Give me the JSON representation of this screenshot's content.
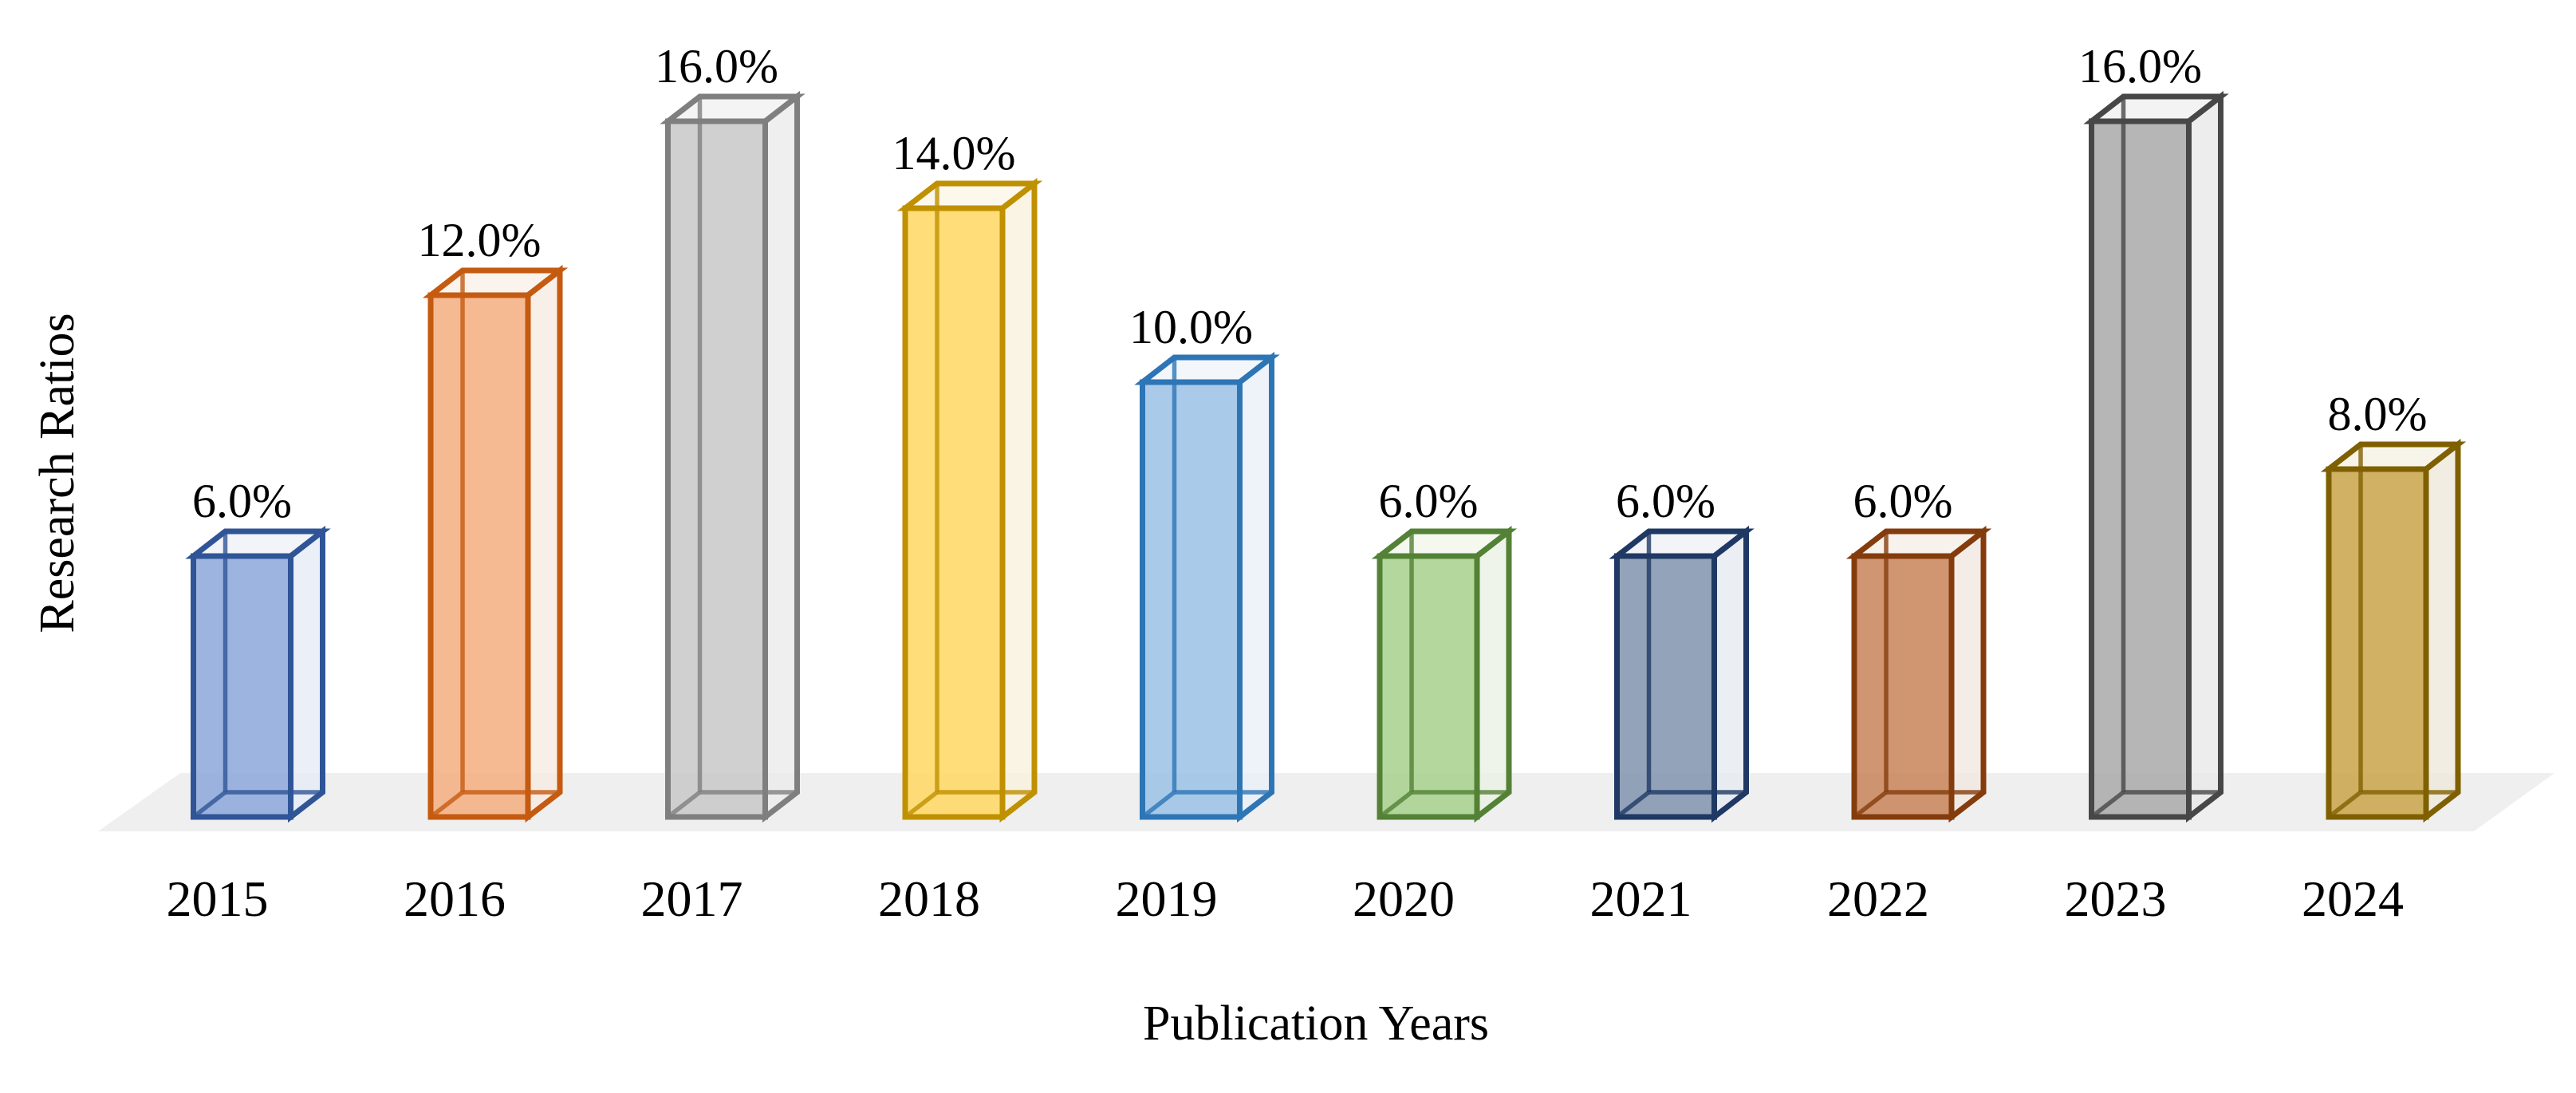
{
  "chart_data": {
    "type": "bar",
    "variant": "3d-transparent-box-columns",
    "title": "",
    "xlabel": "Publication Years",
    "ylabel": "Research Ratios",
    "categories": [
      "2015",
      "2016",
      "2017",
      "2018",
      "2019",
      "2020",
      "2021",
      "2022",
      "2023",
      "2024"
    ],
    "values": [
      6.0,
      12.0,
      16.0,
      14.0,
      10.0,
      6.0,
      6.0,
      6.0,
      16.0,
      8.0
    ],
    "value_labels": [
      "6.0%",
      "12.0%",
      "16.0%",
      "14.0%",
      "10.0%",
      "6.0%",
      "6.0%",
      "6.0%",
      "16.0%",
      "8.0%"
    ],
    "unit": "%",
    "ylim": [
      0,
      18
    ],
    "grid": false,
    "legend": null,
    "axes_shown": false,
    "floor_color": "#EFEFEF",
    "text_color": "#000000",
    "bar_styles": [
      {
        "name": "blue",
        "edge": "#2F5597",
        "front": "#8EAADB",
        "side": "#E7ECF6",
        "top": "#EFF2F9"
      },
      {
        "name": "orange",
        "edge": "#C55A11",
        "front": "#F4B183",
        "side": "#F8ECE4",
        "top": "#FAF1EA"
      },
      {
        "name": "silver",
        "edge": "#7F7F7F",
        "front": "#C9C9C9",
        "side": "#EBEBEB",
        "top": "#F2F2F2"
      },
      {
        "name": "gold",
        "edge": "#BF9000",
        "front": "#FFDA66",
        "side": "#F8F1DD",
        "top": "#FBF6E8"
      },
      {
        "name": "light-blue",
        "edge": "#2E75B6",
        "front": "#9DC3E6",
        "side": "#E9F0F8",
        "top": "#F0F5FB"
      },
      {
        "name": "green",
        "edge": "#538135",
        "front": "#A9D18E",
        "side": "#EAF1E4",
        "top": "#F1F6EC"
      },
      {
        "name": "navy",
        "edge": "#1F3864",
        "front": "#8496B0",
        "side": "#E7EAF0",
        "top": "#EFF1F6"
      },
      {
        "name": "brown",
        "edge": "#843C0C",
        "front": "#C9875E",
        "side": "#F2E9E2",
        "top": "#F6EFE9"
      },
      {
        "name": "dark-gray",
        "edge": "#474747",
        "front": "#ACACAC",
        "side": "#E9E9E9",
        "top": "#F0F0F0"
      },
      {
        "name": "dark-gold",
        "edge": "#7F6000",
        "front": "#CBA74F",
        "side": "#EFE9DC",
        "top": "#F5F1E5"
      }
    ]
  }
}
